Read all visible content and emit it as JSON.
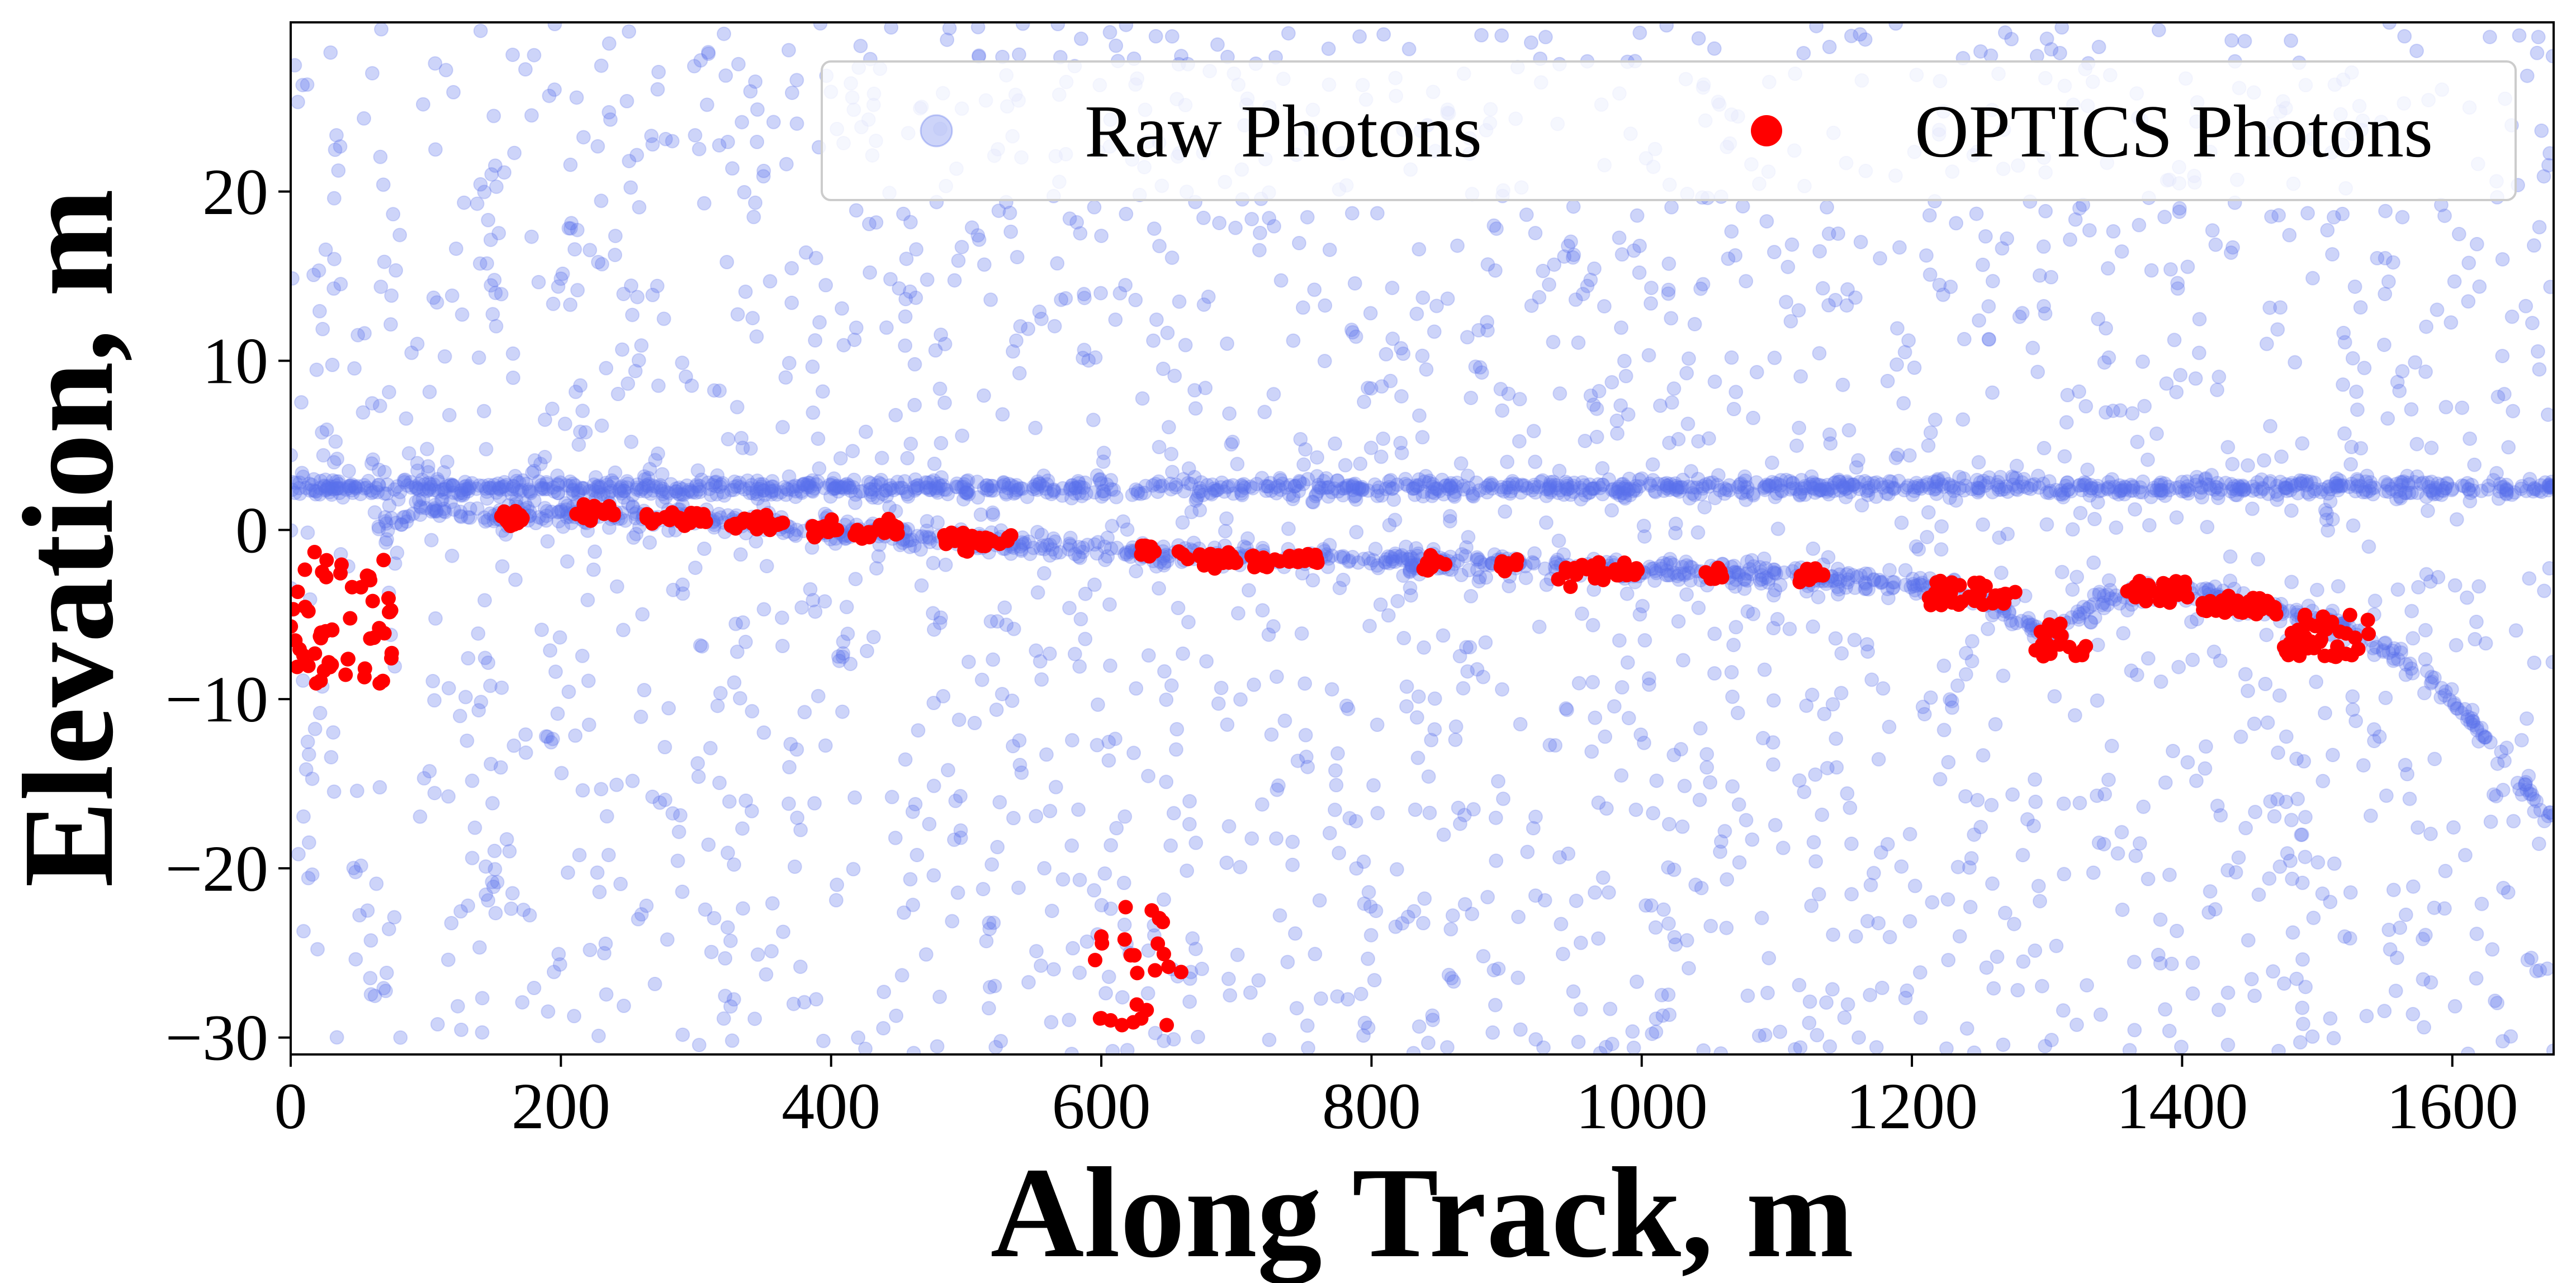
{
  "chart_data": {
    "type": "scatter",
    "title": "",
    "xlabel": "Along Track, m",
    "ylabel": "Elevation, m",
    "xlim": [
      0,
      1675
    ],
    "ylim": [
      -31,
      30
    ],
    "x_ticks": [
      0,
      200,
      400,
      600,
      800,
      1000,
      1200,
      1400,
      1600
    ],
    "y_ticks": [
      -30,
      -20,
      -10,
      0,
      10,
      20
    ],
    "x_tick_labels": [
      "0",
      "200",
      "400",
      "600",
      "800",
      "1000",
      "1200",
      "1400",
      "1600"
    ],
    "y_tick_labels": [
      "−30",
      "−20",
      "−10",
      "0",
      "10",
      "20"
    ],
    "grid": false,
    "legend_position": "top-right",
    "series": [
      {
        "name": "Raw Photons",
        "color": "#5b72ea",
        "opacity": 0.3,
        "components": {
          "noise": {
            "count": 2300,
            "y_range": [
              -31,
              30
            ],
            "x_range": [
              0,
              1675
            ]
          },
          "surface_band": {
            "y": 2.5,
            "y_spread": 0.5,
            "x_range": [
              0,
              1675
            ],
            "count": 1300
          },
          "seafloor_track": {
            "y_spread": 0.6,
            "profile": [
              [
                60,
                0
              ],
              [
                100,
                1.2
              ],
              [
                150,
                0.8
              ],
              [
                200,
                1.0
              ],
              [
                300,
                0.6
              ],
              [
                400,
                0.0
              ],
              [
                500,
                -0.6
              ],
              [
                600,
                -1.2
              ],
              [
                700,
                -1.7
              ],
              [
                800,
                -1.8
              ],
              [
                900,
                -2.0
              ],
              [
                1000,
                -2.4
              ],
              [
                1100,
                -2.6
              ],
              [
                1200,
                -3.2
              ],
              [
                1250,
                -3.8
              ],
              [
                1300,
                -6.2
              ],
              [
                1340,
                -4.2
              ],
              [
                1400,
                -3.6
              ],
              [
                1450,
                -4.3
              ],
              [
                1520,
                -5.8
              ],
              [
                1560,
                -7.5
              ],
              [
                1600,
                -10
              ],
              [
                1640,
                -14
              ],
              [
                1675,
                -17
              ]
            ],
            "count": 1000
          }
        }
      },
      {
        "name": "OPTICS Photons",
        "color": "#ff0000",
        "opacity": 1.0,
        "clusters": [
          {
            "x_range": [
              0,
              75
            ],
            "y_range": [
              -9.2,
              -1.2
            ],
            "count": 55
          },
          {
            "x_range": [
              155,
              175
            ],
            "y": 0.7,
            "count": 18
          },
          {
            "x_range": [
              210,
              240
            ],
            "y": 1.0,
            "count": 20
          },
          {
            "x_range": [
              260,
              310
            ],
            "y": 0.7,
            "count": 30
          },
          {
            "x_range": [
              325,
              365
            ],
            "y": 0.4,
            "count": 24
          },
          {
            "x_range": [
              385,
              405
            ],
            "y": 0.0,
            "count": 14
          },
          {
            "x_range": [
              415,
              450
            ],
            "y": -0.1,
            "count": 20
          },
          {
            "x_range": [
              480,
              540
            ],
            "y": -0.7,
            "count": 35
          },
          {
            "x_range": [
              620,
              640
            ],
            "y": -1.3,
            "count": 12
          },
          {
            "x_range": [
              655,
              700
            ],
            "y": -1.7,
            "count": 28
          },
          {
            "x_range": [
              710,
              760
            ],
            "y": -1.8,
            "count": 28
          },
          {
            "x_range": [
              835,
              855
            ],
            "y": -2.0,
            "count": 12
          },
          {
            "x_range": [
              895,
              910
            ],
            "y": -2.0,
            "count": 10
          },
          {
            "x_range": [
              935,
              1000
            ],
            "y": -2.5,
            "count": 38
          },
          {
            "x_range": [
              1045,
              1060
            ],
            "y": -2.7,
            "count": 10
          },
          {
            "x_range": [
              1115,
              1135
            ],
            "y": -2.8,
            "count": 12
          },
          {
            "x_range": [
              1210,
              1280
            ],
            "y_range": [
              -4.5,
              -3.0
            ],
            "count": 40
          },
          {
            "x_range": [
              1290,
              1330
            ],
            "y_range": [
              -7.5,
              -5.5
            ],
            "count": 28
          },
          {
            "x_range": [
              1355,
              1405
            ],
            "y_range": [
              -4.3,
              -3.0
            ],
            "count": 32
          },
          {
            "x_range": [
              1415,
              1470
            ],
            "y_range": [
              -5.0,
              -3.8
            ],
            "count": 34
          },
          {
            "x_range": [
              1475,
              1540
            ],
            "y_range": [
              -7.5,
              -5.0
            ],
            "count": 40
          },
          {
            "x_range": [
              595,
              660
            ],
            "y_range": [
              -29.5,
              -22.0
            ],
            "count": 26
          }
        ]
      }
    ]
  }
}
